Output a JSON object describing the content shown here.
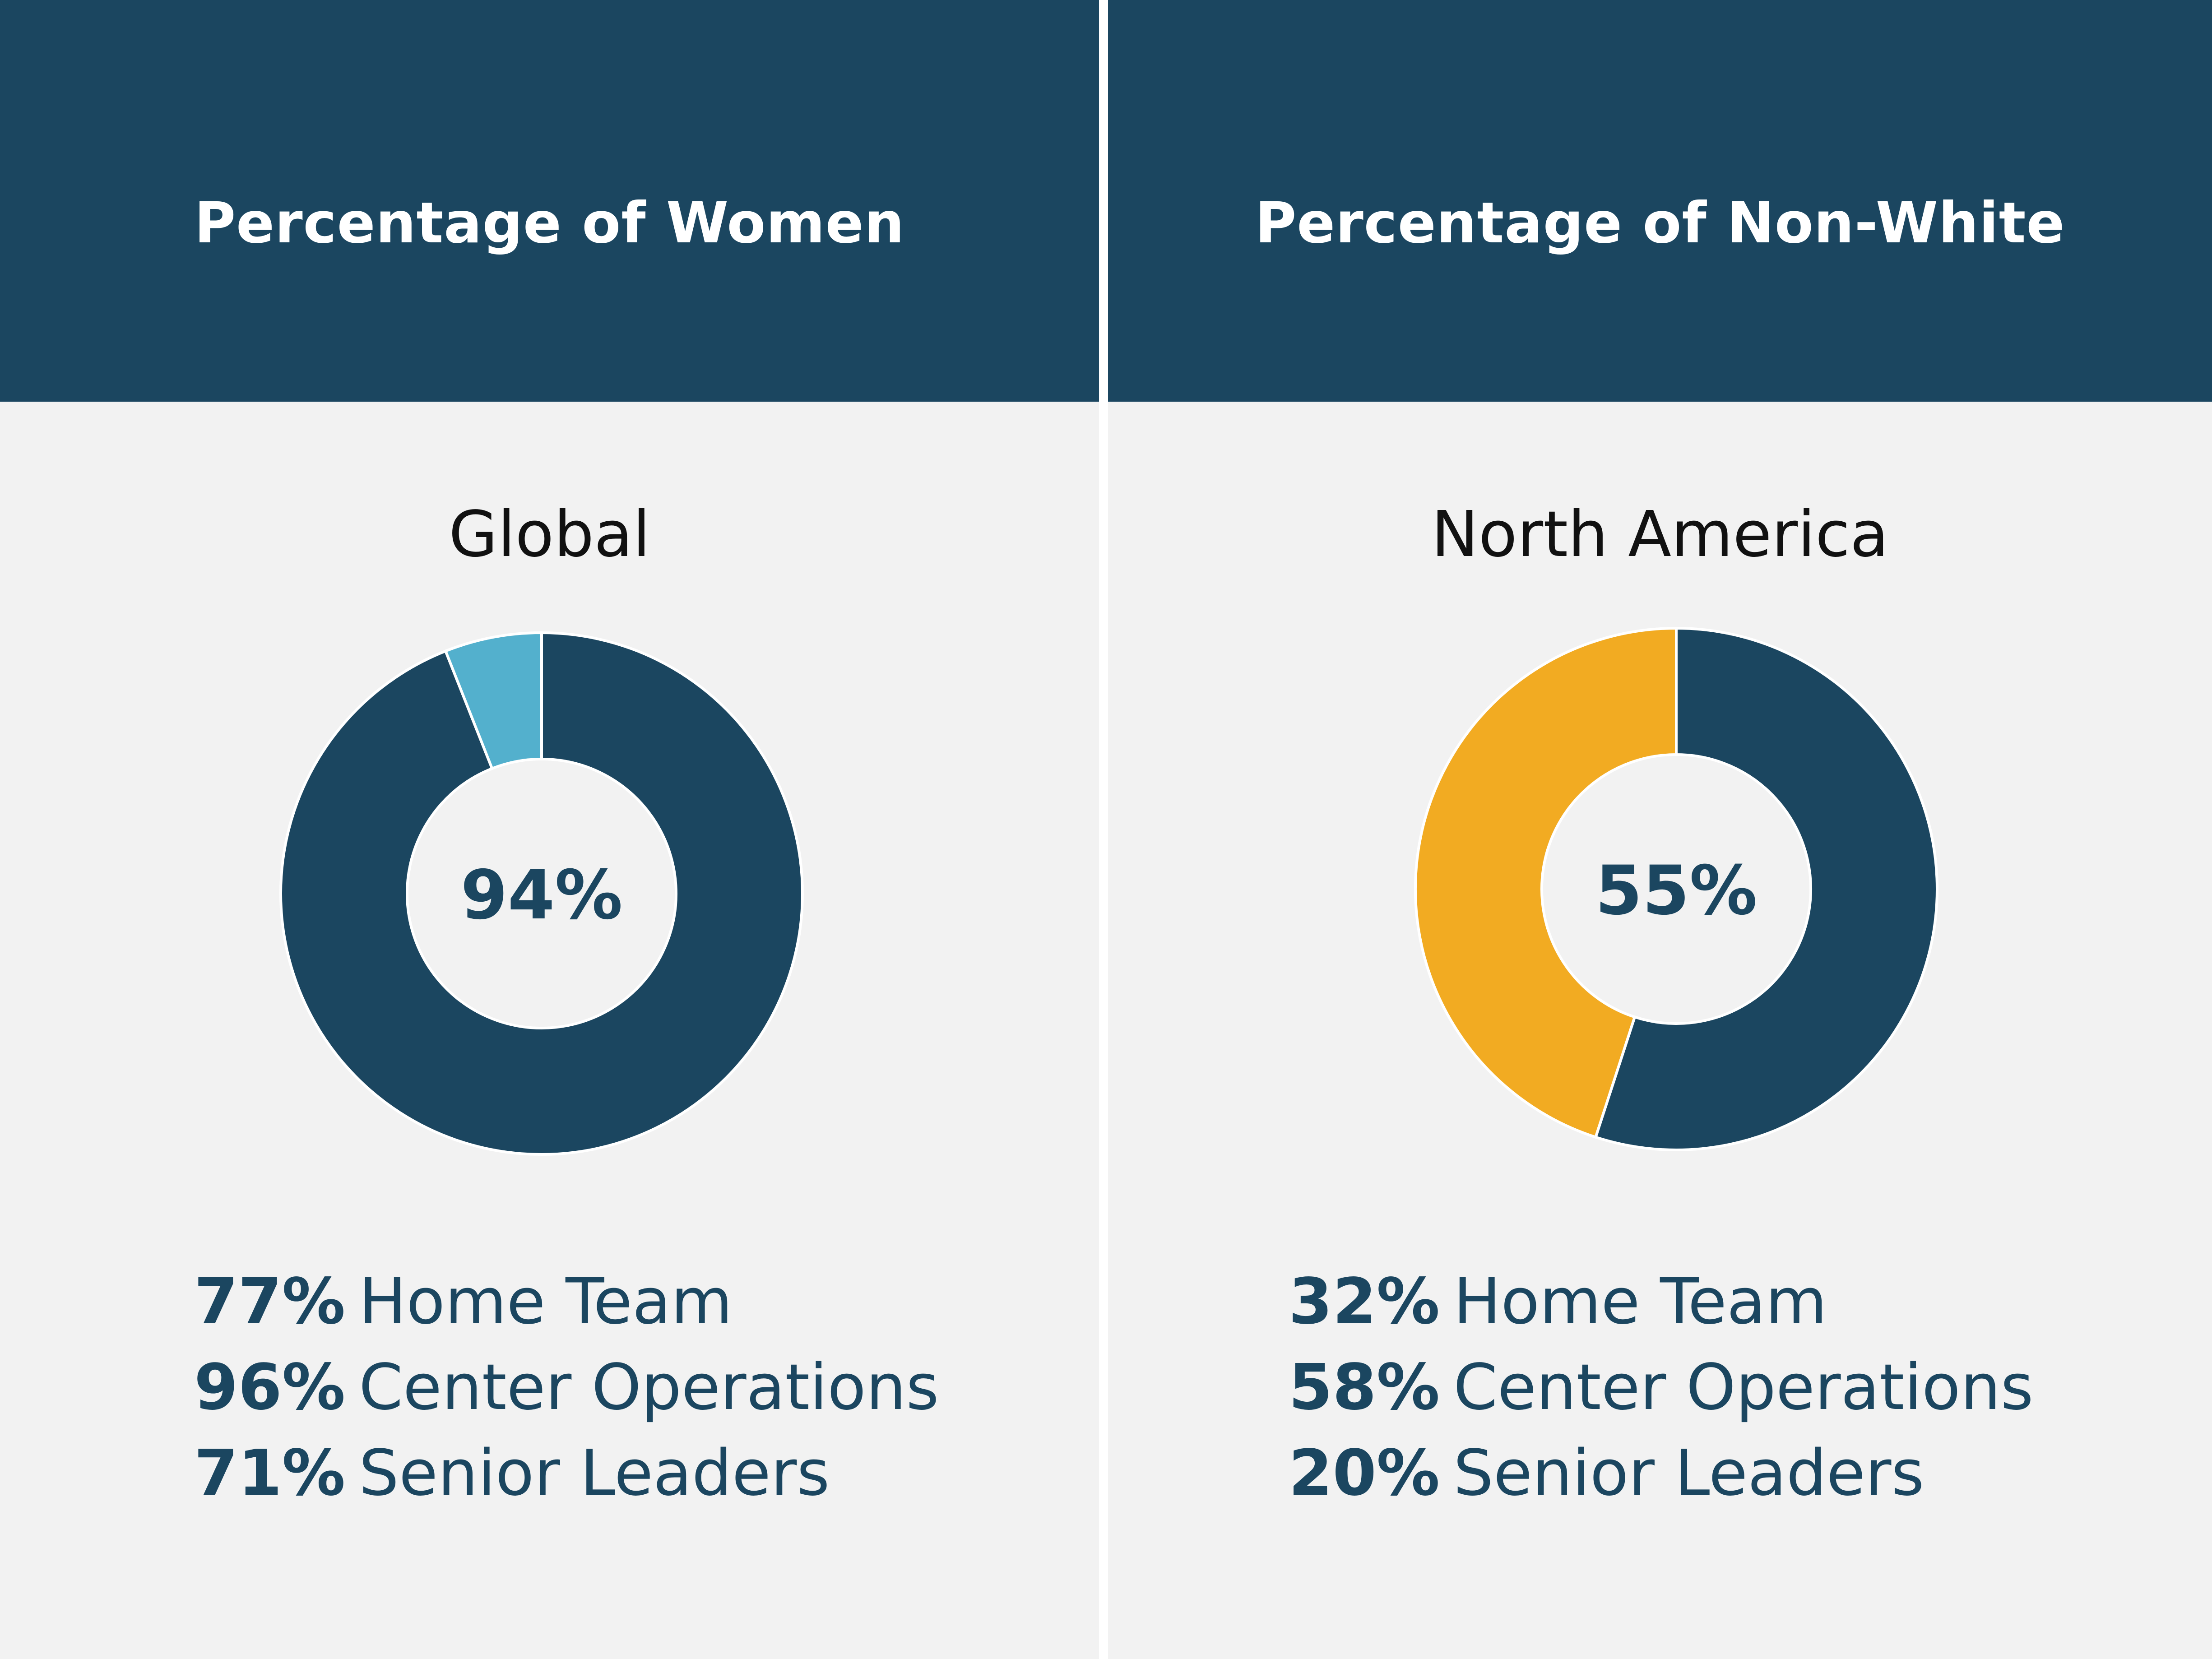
{
  "colors": {
    "dark_blue": "#1b4660",
    "light_blue": "#53b0cd",
    "gold": "#f2ab22",
    "donut_hole": "#f2f2f2"
  },
  "chart_data": [
    {
      "type": "pie",
      "title": "Percentage of Women",
      "subtitle": "Global",
      "center_label": "94%",
      "slices": [
        {
          "value": 94,
          "color": "#1b4660"
        },
        {
          "value": 6,
          "color": "#53b0cd"
        }
      ],
      "stats": [
        {
          "value": "77%",
          "label": "Home Team"
        },
        {
          "value": "96%",
          "label": "Center Operations"
        },
        {
          "value": "71%",
          "label": "Senior Leaders"
        }
      ]
    },
    {
      "type": "pie",
      "title": "Percentage of Non-White",
      "subtitle": "North America",
      "center_label": "55%",
      "slices": [
        {
          "value": 55,
          "color": "#1b4660"
        },
        {
          "value": 45,
          "color": "#f2ab22"
        }
      ],
      "stats": [
        {
          "value": "32%",
          "label": "Home Team"
        },
        {
          "value": "58%",
          "label": "Center Operations"
        },
        {
          "value": "20%",
          "label": "Senior Leaders"
        }
      ]
    }
  ]
}
